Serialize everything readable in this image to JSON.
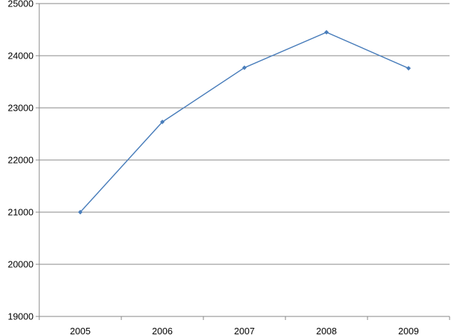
{
  "chart_data": {
    "type": "line",
    "title": "",
    "xlabel": "",
    "ylabel": "",
    "categories": [
      "2005",
      "2006",
      "2007",
      "2008",
      "2009"
    ],
    "series": [
      {
        "values": [
          21000,
          22730,
          23770,
          24450,
          23760
        ]
      }
    ],
    "ylim": [
      19000,
      25000
    ],
    "y_ticks": [
      "19000",
      "20000",
      "21000",
      "22000",
      "23000",
      "24000",
      "25000"
    ],
    "grid": "horizontal",
    "legend": "none",
    "colors": {
      "line": "#4a7ebb",
      "grid": "#868686",
      "axis": "#868686"
    }
  }
}
